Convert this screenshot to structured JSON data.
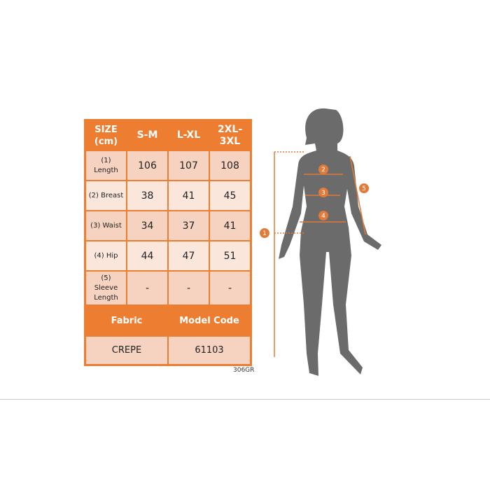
{
  "table": {
    "headers": [
      "SIZE (cm)",
      "S-M",
      "L-XL",
      "2XL-3XL"
    ],
    "rows": [
      {
        "label": "(1) Length",
        "values": [
          "106",
          "107",
          "108"
        ]
      },
      {
        "label": "(2) Breast",
        "values": [
          "38",
          "41",
          "45"
        ]
      },
      {
        "label": "(3) Waist",
        "values": [
          "34",
          "37",
          "41"
        ]
      },
      {
        "label": "(4) Hip",
        "values": [
          "44",
          "47",
          "51"
        ]
      },
      {
        "label": "(5) Sleeve Length",
        "values": [
          "-",
          "-",
          "-"
        ]
      }
    ],
    "fabric_label": "Fabric",
    "model_code_label": "Model Code",
    "fabric": "CREPE",
    "model_code": "61103"
  },
  "product_code": "306GR",
  "figure": {
    "markers": [
      "1",
      "2",
      "3",
      "4",
      "5"
    ]
  },
  "colors": {
    "accent": "#ed7d31",
    "silhouette": "#6b6b6b"
  }
}
